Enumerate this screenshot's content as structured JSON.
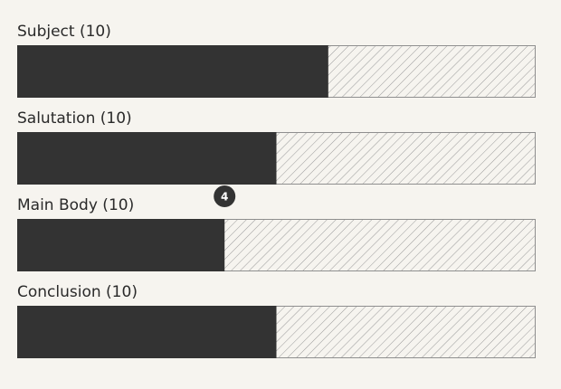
{
  "chart_data": {
    "type": "bar",
    "orientation": "horizontal",
    "categories": [
      "Subject (10)",
      "Salutation (10)",
      "Main Body (10)",
      "Conclusion (10)"
    ],
    "values": [
      6,
      5,
      4,
      5
    ],
    "value_labels": [
      null,
      null,
      "4",
      null
    ],
    "xlim": [
      0,
      10
    ],
    "color": "#333333"
  }
}
